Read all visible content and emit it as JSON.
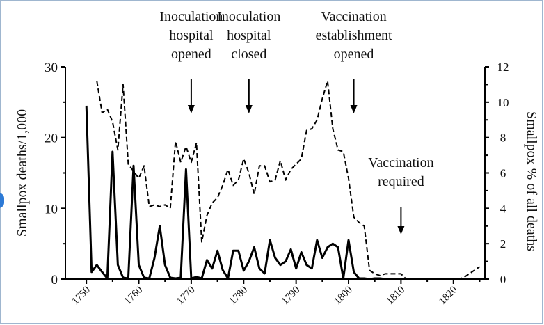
{
  "chart_data": {
    "type": "line",
    "left_axis": {
      "label": "Smallpox deaths/1,000",
      "ylim": [
        0,
        30
      ],
      "ticks": [
        "0",
        "10",
        "20",
        "30"
      ]
    },
    "right_axis": {
      "label": "Smallpox % of all deaths",
      "ylim": [
        0,
        12
      ],
      "ticks": [
        "0",
        "2",
        "4",
        "6",
        "8",
        "10",
        "12"
      ]
    },
    "x_axis": {
      "xlim": [
        1746,
        1826
      ],
      "ticks": [
        "1750",
        "1760",
        "1770",
        "1780",
        "1790",
        "1800",
        "1810",
        "1820"
      ]
    },
    "series": [
      {
        "style": "solid",
        "axis": "left",
        "points": [
          [
            1750,
            24.5
          ],
          [
            1751,
            1.0
          ],
          [
            1752,
            2.0
          ],
          [
            1753,
            1.0
          ],
          [
            1754,
            0.1
          ],
          [
            1755,
            18.0
          ],
          [
            1756,
            2.0
          ],
          [
            1757,
            0.2
          ],
          [
            1758,
            0.1
          ],
          [
            1759,
            16.0
          ],
          [
            1760,
            2.0
          ],
          [
            1761,
            0.2
          ],
          [
            1762,
            0.1
          ],
          [
            1763,
            3.0
          ],
          [
            1764,
            7.5
          ],
          [
            1765,
            2.0
          ],
          [
            1766,
            0.2
          ],
          [
            1767,
            0.1
          ],
          [
            1768,
            0.2
          ],
          [
            1769,
            15.5
          ],
          [
            1770,
            0.1
          ],
          [
            1771,
            0.3
          ],
          [
            1772,
            0.1
          ],
          [
            1773,
            2.7
          ],
          [
            1774,
            1.5
          ],
          [
            1775,
            4.0
          ],
          [
            1776,
            1.3
          ],
          [
            1777,
            0.1
          ],
          [
            1778,
            4.0
          ],
          [
            1779,
            4.0
          ],
          [
            1780,
            1.2
          ],
          [
            1781,
            2.5
          ],
          [
            1782,
            4.5
          ],
          [
            1783,
            1.5
          ],
          [
            1784,
            0.8
          ],
          [
            1785,
            5.5
          ],
          [
            1786,
            3.0
          ],
          [
            1787,
            2.0
          ],
          [
            1788,
            2.5
          ],
          [
            1789,
            4.2
          ],
          [
            1790,
            1.5
          ],
          [
            1791,
            3.8
          ],
          [
            1792,
            2.0
          ],
          [
            1793,
            1.5
          ],
          [
            1794,
            5.5
          ],
          [
            1795,
            3.0
          ],
          [
            1796,
            4.5
          ],
          [
            1797,
            5.0
          ],
          [
            1798,
            4.5
          ],
          [
            1799,
            0.1
          ],
          [
            1800,
            5.5
          ],
          [
            1801,
            1.0
          ],
          [
            1802,
            0.1
          ],
          [
            1803,
            0.1
          ],
          [
            1804,
            0.0
          ],
          [
            1805,
            0.1
          ],
          [
            1806,
            0.1
          ],
          [
            1807,
            0.0
          ],
          [
            1808,
            0.0
          ],
          [
            1809,
            0.0
          ],
          [
            1810,
            0.0
          ],
          [
            1811,
            0.0
          ],
          [
            1812,
            0.0
          ],
          [
            1813,
            0.0
          ],
          [
            1814,
            0.0
          ],
          [
            1815,
            0.0
          ],
          [
            1816,
            0.0
          ],
          [
            1817,
            0.0
          ],
          [
            1818,
            0.0
          ],
          [
            1819,
            0.0
          ],
          [
            1820,
            0.0
          ],
          [
            1821,
            0.0
          ],
          [
            1822,
            0.0
          ],
          [
            1823,
            0.0
          ],
          [
            1824,
            0.0
          ],
          [
            1825,
            0.0
          ]
        ]
      },
      {
        "style": "dashed",
        "axis": "right",
        "points": [
          [
            1752,
            11.2
          ],
          [
            1753,
            9.4
          ],
          [
            1754,
            9.6
          ],
          [
            1755,
            8.9
          ],
          [
            1756,
            7.3
          ],
          [
            1757,
            11.0
          ],
          [
            1758,
            6.5
          ],
          [
            1759,
            6.1
          ],
          [
            1760,
            5.7
          ],
          [
            1761,
            6.4
          ],
          [
            1762,
            4.1
          ],
          [
            1763,
            4.2
          ],
          [
            1764,
            4.1
          ],
          [
            1765,
            4.2
          ],
          [
            1766,
            4.0
          ],
          [
            1767,
            7.8
          ],
          [
            1768,
            6.6
          ],
          [
            1769,
            7.5
          ],
          [
            1770,
            6.6
          ],
          [
            1771,
            7.7
          ],
          [
            1772,
            2.1
          ],
          [
            1773,
            3.6
          ],
          [
            1774,
            4.3
          ],
          [
            1775,
            4.6
          ],
          [
            1776,
            5.3
          ],
          [
            1777,
            6.2
          ],
          [
            1778,
            5.3
          ],
          [
            1779,
            5.6
          ],
          [
            1780,
            6.8
          ],
          [
            1781,
            6.0
          ],
          [
            1782,
            4.8
          ],
          [
            1783,
            6.4
          ],
          [
            1784,
            6.4
          ],
          [
            1785,
            5.5
          ],
          [
            1786,
            5.6
          ],
          [
            1787,
            6.7
          ],
          [
            1788,
            5.6
          ],
          [
            1789,
            6.2
          ],
          [
            1790,
            6.5
          ],
          [
            1791,
            6.8
          ],
          [
            1792,
            8.4
          ],
          [
            1793,
            8.5
          ],
          [
            1794,
            9.0
          ],
          [
            1795,
            10.2
          ],
          [
            1796,
            11.2
          ],
          [
            1797,
            8.5
          ],
          [
            1798,
            7.3
          ],
          [
            1799,
            7.2
          ],
          [
            1800,
            5.7
          ],
          [
            1801,
            3.5
          ],
          [
            1802,
            3.2
          ],
          [
            1803,
            3.0
          ],
          [
            1804,
            0.5
          ],
          [
            1805,
            0.3
          ],
          [
            1806,
            0.2
          ],
          [
            1807,
            0.3
          ],
          [
            1808,
            0.3
          ],
          [
            1809,
            0.3
          ],
          [
            1810,
            0.3
          ],
          [
            1811,
            0.0
          ],
          [
            1812,
            0.0
          ],
          [
            1813,
            0.0
          ],
          [
            1814,
            0.0
          ],
          [
            1815,
            0.0
          ],
          [
            1816,
            0.0
          ],
          [
            1817,
            0.0
          ],
          [
            1818,
            0.0
          ],
          [
            1819,
            0.0
          ],
          [
            1820,
            0.0
          ],
          [
            1821,
            0.0
          ],
          [
            1822,
            0.1
          ],
          [
            1823,
            0.3
          ],
          [
            1824,
            0.5
          ],
          [
            1825,
            0.7
          ]
        ]
      }
    ],
    "annotations": [
      {
        "id": "inoc-opened",
        "lines": [
          "Inoculation",
          "hospital",
          "opened"
        ],
        "x": 1770
      },
      {
        "id": "inoc-closed",
        "lines": [
          "Inoculation",
          "hospital",
          "closed"
        ],
        "x": 1781
      },
      {
        "id": "vacc-est",
        "lines": [
          "Vaccination",
          "establishment",
          "opened"
        ],
        "x": 1801
      },
      {
        "id": "vacc-req",
        "lines": [
          "Vaccination",
          "required"
        ],
        "x": 1810
      }
    ],
    "grid": false,
    "legend": "none"
  }
}
